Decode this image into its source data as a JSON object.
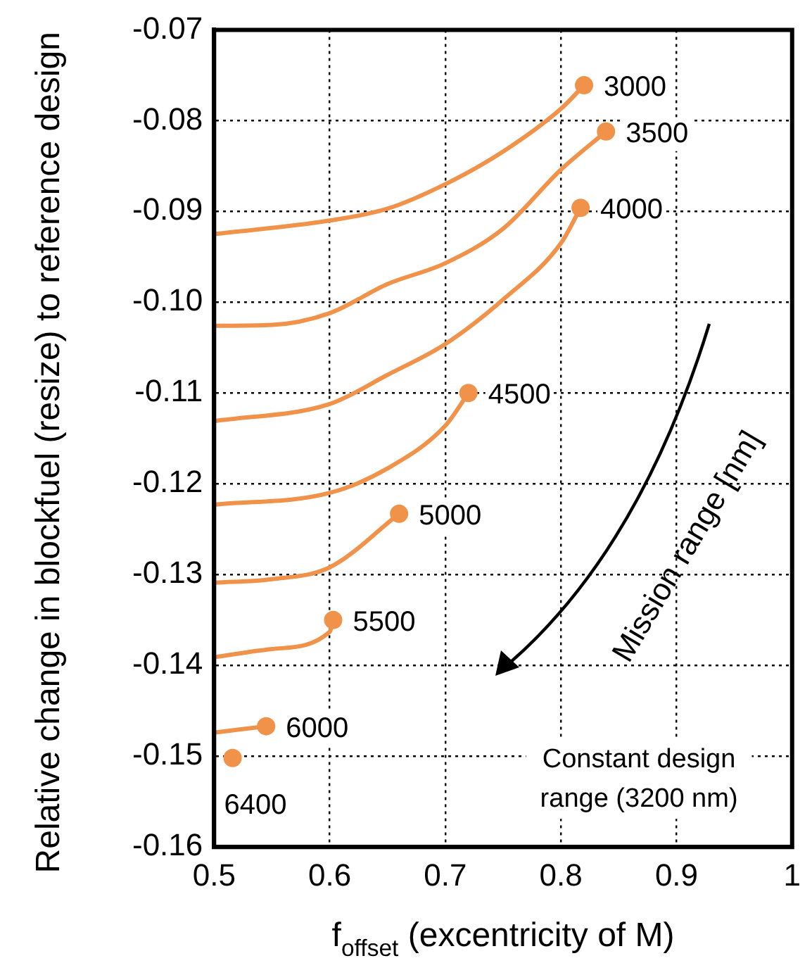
{
  "chart_data": {
    "type": "line",
    "xlabel": "f$_{offset}$ (excentricity of M)",
    "ylabel": "Relative change in blockfuel (resize) to reference design",
    "xlim": [
      0.5,
      1
    ],
    "xticks": [
      {
        "value": 0.5,
        "label": "0.5"
      },
      {
        "value": 0.6,
        "label": "0.6"
      },
      {
        "value": 0.7,
        "label": "0.7"
      },
      {
        "value": 0.8,
        "label": "0.8"
      },
      {
        "value": 0.9,
        "label": "0.9"
      },
      {
        "value": 1,
        "label": "1"
      }
    ],
    "ylim": [
      -0.16,
      -0.07
    ],
    "yticks": [
      {
        "value": -0.16,
        "label": "-0.16"
      },
      {
        "value": -0.15,
        "label": "-0.15"
      },
      {
        "value": -0.14,
        "label": "-0.14"
      },
      {
        "value": -0.13,
        "label": "-0.13"
      },
      {
        "value": -0.12,
        "label": "-0.12"
      },
      {
        "value": -0.11,
        "label": "-0.11"
      },
      {
        "value": -0.1,
        "label": "-0.10"
      },
      {
        "value": -0.09,
        "label": "-0.09"
      },
      {
        "value": -0.08,
        "label": "-0.08"
      },
      {
        "value": -0.07,
        "label": "-0.07"
      }
    ],
    "grid": true,
    "legend": false,
    "line_style": "solid",
    "series": [
      {
        "name": "3000",
        "color": "#f0924a",
        "x": [
          0.5,
          0.6,
          0.65,
          0.7,
          0.75,
          0.8,
          0.82
        ],
        "values": [
          -0.0925,
          -0.091,
          -0.0897,
          -0.087,
          -0.0834,
          -0.0787,
          -0.0761
        ]
      },
      {
        "name": "3500",
        "color": "#f0924a",
        "x": [
          0.5,
          0.55,
          0.6,
          0.65,
          0.7,
          0.75,
          0.8,
          0.839
        ],
        "values": [
          -0.1026,
          -0.1025,
          -0.1012,
          -0.098,
          -0.0957,
          -0.0919,
          -0.0854,
          -0.0812
        ]
      },
      {
        "name": "4000",
        "color": "#f0924a",
        "x": [
          0.5,
          0.6,
          0.65,
          0.7,
          0.75,
          0.8,
          0.817
        ],
        "values": [
          -0.1131,
          -0.1112,
          -0.108,
          -0.1046,
          -0.0997,
          -0.0935,
          -0.0896
        ]
      },
      {
        "name": "4500",
        "color": "#f0924a",
        "x": [
          0.5,
          0.6,
          0.65,
          0.7,
          0.72
        ],
        "values": [
          -0.1223,
          -0.121,
          -0.1183,
          -0.1136,
          -0.11
        ]
      },
      {
        "name": "5000",
        "color": "#f0924a",
        "x": [
          0.5,
          0.55,
          0.6,
          0.66
        ],
        "values": [
          -0.1309,
          -0.1305,
          -0.1292,
          -0.1233
        ]
      },
      {
        "name": "5500",
        "color": "#f0924a",
        "x": [
          0.5,
          0.55,
          0.6,
          0.603
        ],
        "values": [
          -0.1391,
          -0.1382,
          -0.1363,
          -0.135
        ]
      },
      {
        "name": "6000",
        "color": "#f0924a",
        "x": [
          0.5,
          0.545
        ],
        "values": [
          -0.1474,
          -0.1467
        ]
      },
      {
        "name": "6400",
        "color": "#f0924a",
        "marker": "circle",
        "x": [
          0.516
        ],
        "values": [
          -0.1502
        ]
      }
    ],
    "annotations": [
      "Constant design range (3200 nm)",
      "Mission range [nm]"
    ]
  }
}
